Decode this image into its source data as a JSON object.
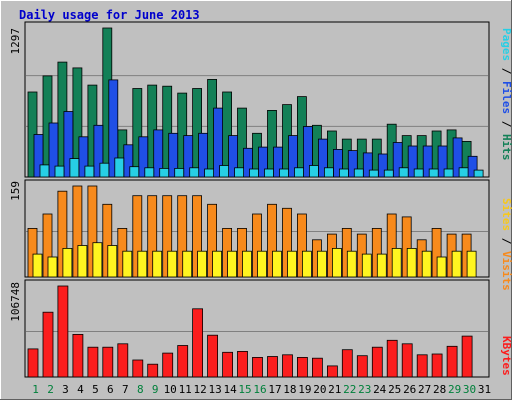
{
  "chart_data": {
    "type": "bar",
    "title": "Daily usage for June 2013",
    "categories": [
      "1",
      "2",
      "3",
      "4",
      "5",
      "6",
      "7",
      "8",
      "9",
      "10",
      "11",
      "12",
      "13",
      "14",
      "15",
      "16",
      "17",
      "18",
      "19",
      "20",
      "21",
      "22",
      "23",
      "24",
      "25",
      "26",
      "27",
      "28",
      "29",
      "30",
      "31"
    ],
    "weekend_days": [
      "1",
      "2",
      "8",
      "9",
      "15",
      "16",
      "22",
      "23",
      "29",
      "30"
    ],
    "panels": [
      {
        "id": "top",
        "max_label": "1297",
        "right_label": [
          "Pages",
          "Files",
          "Hits"
        ],
        "ylim": [
          0,
          1297
        ],
        "series": [
          {
            "name": "Hits",
            "color": "#138057",
            "values": [
              740,
              880,
              1000,
              950,
              800,
              1297,
              410,
              770,
              800,
              790,
              730,
              770,
              850,
              740,
              600,
              380,
              580,
              630,
              700,
              450,
              400,
              330,
              330,
              330,
              460,
              360,
              360,
              400,
              410,
              310,
              0
            ]
          },
          {
            "name": "Files",
            "color": "#1f4fe6",
            "values": [
              370,
              470,
              570,
              350,
              450,
              845,
              280,
              350,
              410,
              380,
              360,
              380,
              600,
              360,
              250,
              260,
              260,
              360,
              440,
              330,
              240,
              230,
              210,
              200,
              300,
              270,
              270,
              270,
              340,
              180,
              0
            ]
          },
          {
            "name": "Pages",
            "color": "#27cfe5",
            "values": [
              105,
              95,
              160,
              95,
              120,
              165,
              90,
              80,
              75,
              75,
              80,
              70,
              100,
              80,
              70,
              70,
              70,
              80,
              100,
              80,
              70,
              70,
              60,
              60,
              80,
              70,
              70,
              70,
              80,
              60,
              0
            ]
          }
        ]
      },
      {
        "id": "middle",
        "max_label": "159",
        "right_label": [
          "Sites",
          "Visits"
        ],
        "ylim": [
          0,
          159
        ],
        "series": [
          {
            "name": "Visits",
            "color": "#f78a1c",
            "values": [
              85,
              110,
              150,
              159,
              159,
              127,
              85,
              142,
              142,
              142,
              142,
              142,
              127,
              85,
              85,
              110,
              127,
              120,
              110,
              65,
              75,
              85,
              75,
              85,
              110,
              105,
              65,
              85,
              75,
              75,
              0
            ]
          },
          {
            "name": "Sites",
            "color": "#fff520",
            "values": [
              40,
              35,
              50,
              55,
              60,
              55,
              45,
              45,
              45,
              45,
              45,
              45,
              45,
              45,
              45,
              45,
              45,
              45,
              45,
              45,
              50,
              45,
              40,
              40,
              50,
              50,
              45,
              35,
              45,
              45,
              0
            ]
          }
        ]
      },
      {
        "id": "bottom",
        "max_label": "106748",
        "right_label": [
          "KBytes"
        ],
        "ylim": [
          0,
          106748
        ],
        "series": [
          {
            "name": "KBytes",
            "color": "#fb1d1d",
            "values": [
              33000,
              76000,
              106748,
              50000,
              35000,
              35000,
              39000,
              20000,
              15000,
              28000,
              37000,
              80000,
              49000,
              29000,
              30000,
              23000,
              24000,
              26000,
              23000,
              22000,
              13000,
              32000,
              25000,
              35000,
              43000,
              39000,
              26000,
              27000,
              36000,
              48000,
              0
            ]
          }
        ]
      }
    ]
  },
  "colors": {
    "title": "#0000cc",
    "day_weekday": "#000000",
    "day_weekend": "#00803b",
    "label_pages": "#27cfe5",
    "label_files": "#1f4fe6",
    "label_hits": "#138057",
    "label_sites": "#f7c81c",
    "label_visits": "#f78a1c",
    "label_kbytes": "#fb1d1d",
    "plot_bg": "#c0c0c0",
    "frame_bg": "#c0c0c0"
  }
}
